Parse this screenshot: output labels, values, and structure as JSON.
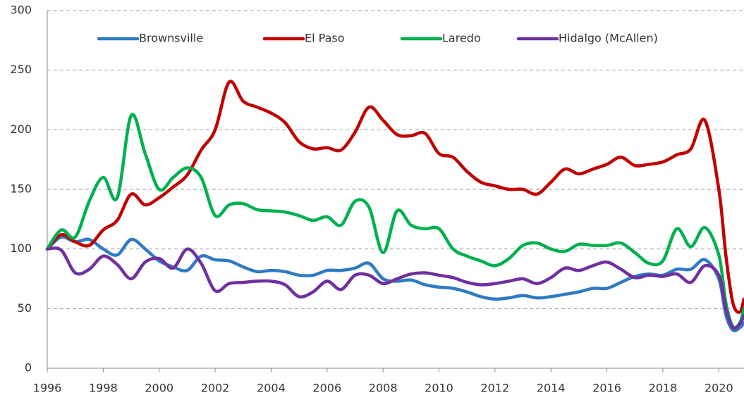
{
  "chart_data": {
    "type": "line",
    "x": [
      1996,
      1996.5,
      1997,
      1997.5,
      1998,
      1998.5,
      1999,
      1999.5,
      2000,
      2000.5,
      2001,
      2001.5,
      2002,
      2002.5,
      2003,
      2003.5,
      2004,
      2004.5,
      2005,
      2005.5,
      2006,
      2006.5,
      2007,
      2007.5,
      2008,
      2008.5,
      2009,
      2009.5,
      2010,
      2010.5,
      2011,
      2011.5,
      2012,
      2012.5,
      2013,
      2013.5,
      2014,
      2014.5,
      2015,
      2015.5,
      2016,
      2016.5,
      2017,
      2017.5,
      2018,
      2018.5,
      2019,
      2019.5,
      2020,
      2020.25,
      2020.5,
      2020.75,
      2020.9
    ],
    "series": [
      {
        "name": "Brownsville",
        "color": "#2e7bc4",
        "values": [
          100,
          110,
          106,
          108,
          100,
          95,
          108,
          100,
          90,
          85,
          82,
          94,
          91,
          90,
          85,
          81,
          82,
          81,
          78,
          78,
          82,
          82,
          84,
          88,
          75,
          73,
          74,
          70,
          68,
          67,
          64,
          60,
          58,
          59,
          61,
          59,
          60,
          62,
          64,
          67,
          67,
          72,
          77,
          79,
          78,
          83,
          83,
          91,
          75,
          45,
          32,
          34,
          38
        ]
      },
      {
        "name": "El Paso",
        "color": "#c00000",
        "values": [
          100,
          112,
          106,
          103,
          116,
          124,
          146,
          137,
          143,
          152,
          162,
          183,
          200,
          240,
          224,
          219,
          214,
          206,
          190,
          184,
          185,
          183,
          198,
          219,
          208,
          196,
          195,
          197,
          180,
          177,
          165,
          156,
          153,
          150,
          150,
          146,
          156,
          167,
          163,
          167,
          171,
          177,
          170,
          171,
          173,
          179,
          184,
          208,
          150,
          95,
          55,
          47,
          58
        ]
      },
      {
        "name": "Laredo",
        "color": "#00b050",
        "values": [
          100,
          116,
          110,
          140,
          160,
          143,
          212,
          180,
          150,
          160,
          168,
          160,
          128,
          137,
          138,
          133,
          132,
          131,
          128,
          124,
          127,
          120,
          140,
          135,
          97,
          132,
          120,
          117,
          117,
          100,
          94,
          90,
          86,
          92,
          103,
          105,
          100,
          98,
          104,
          103,
          103,
          105,
          97,
          88,
          90,
          117,
          102,
          118,
          95,
          55,
          35,
          38,
          50
        ]
      },
      {
        "name": "Hidalgo (McAllen)",
        "color": "#7030a0",
        "values": [
          100,
          99,
          80,
          83,
          94,
          87,
          75,
          89,
          92,
          84,
          100,
          88,
          65,
          71,
          72,
          73,
          73,
          70,
          60,
          64,
          73,
          66,
          78,
          78,
          71,
          75,
          79,
          80,
          78,
          76,
          72,
          70,
          71,
          73,
          75,
          71,
          76,
          84,
          82,
          86,
          89,
          83,
          76,
          78,
          77,
          79,
          72,
          86,
          78,
          50,
          34,
          37,
          44
        ]
      }
    ],
    "xlim": [
      1996,
      2020.9
    ],
    "xticks": [
      1996,
      1998,
      2000,
      2002,
      2004,
      2006,
      2008,
      2010,
      2012,
      2014,
      2016,
      2018,
      2020
    ],
    "ylim": [
      0,
      300
    ],
    "yticks": [
      0,
      50,
      100,
      150,
      200,
      250,
      300
    ],
    "grid": true,
    "legend": "top"
  }
}
